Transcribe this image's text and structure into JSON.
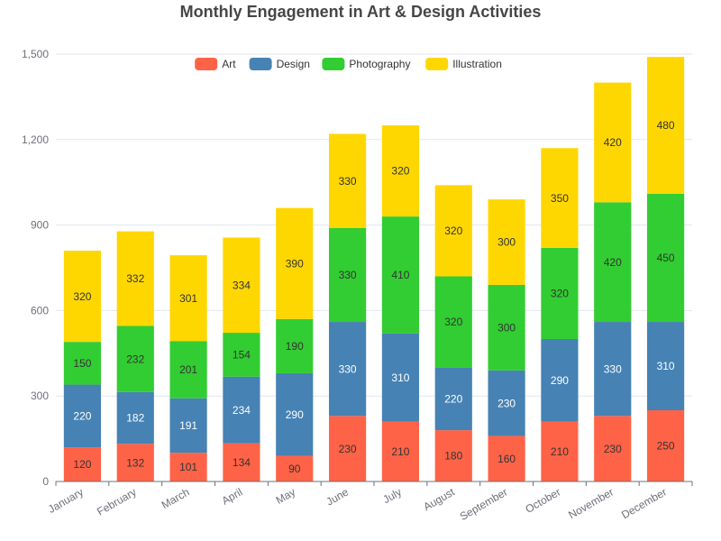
{
  "chart_data": {
    "type": "bar",
    "stacked": true,
    "title": "Monthly Engagement in Art & Design Activities",
    "xlabel": "",
    "ylabel": "",
    "ylim": [
      0,
      1500
    ],
    "yticks": [
      0,
      300,
      600,
      900,
      1200,
      1500
    ],
    "ytick_labels": [
      "0",
      "300",
      "600",
      "900",
      "1,200",
      "1,500"
    ],
    "grid": true,
    "legend_position": "top-center",
    "categories": [
      "January",
      "February",
      "March",
      "April",
      "May",
      "June",
      "July",
      "August",
      "September",
      "October",
      "November",
      "December"
    ],
    "series": [
      {
        "name": "Art",
        "color": "#ff6347",
        "label_color": "#333333",
        "values": [
          120,
          132,
          101,
          134,
          90,
          230,
          210,
          180,
          160,
          210,
          230,
          250
        ]
      },
      {
        "name": "Design",
        "color": "#4682b4",
        "label_color": "#ffffff",
        "values": [
          220,
          182,
          191,
          234,
          290,
          330,
          310,
          220,
          230,
          290,
          330,
          310
        ]
      },
      {
        "name": "Photography",
        "color": "#32cd32",
        "label_color": "#333333",
        "values": [
          150,
          232,
          201,
          154,
          190,
          330,
          410,
          320,
          300,
          320,
          420,
          450
        ]
      },
      {
        "name": "Illustration",
        "color": "#ffd700",
        "label_color": "#333333",
        "values": [
          320,
          332,
          301,
          334,
          390,
          330,
          320,
          320,
          300,
          350,
          420,
          480
        ]
      }
    ]
  }
}
